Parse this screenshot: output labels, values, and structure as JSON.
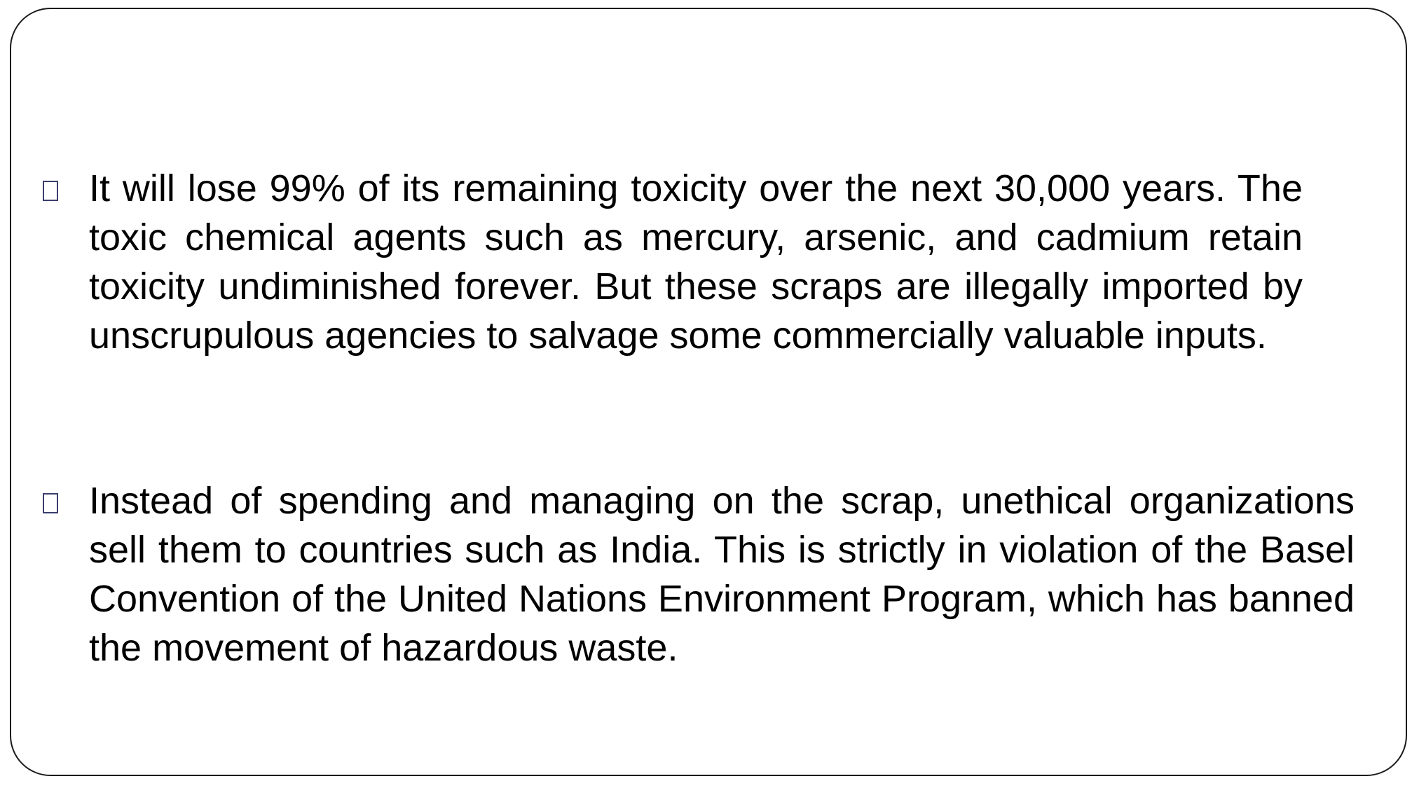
{
  "slide": {
    "bullets": [
      {
        "marker_icon": "square-bullet-icon",
        "text": "It will lose 99% of its remaining toxicity over the next 30,000 years. The  toxic chemical agents such as mercury, arsenic, and cadmium retain  toxicity undiminished forever. But these scraps are illegally imported by  unscrupulous agencies to salvage some commercially valuable inputs."
      },
      {
        "marker_icon": "square-bullet-icon",
        "text": "Instead of spending and managing on the scrap, unethical organizations  sell them to countries such as India. This is strictly in violation of the Basel Convention of the United Nations Environment Program, which has banned  the movement of hazardous waste."
      }
    ],
    "colors": {
      "text": "#000000",
      "bullet": "#3a3f6e",
      "frame": "#1a1a1a",
      "background": "#ffffff"
    }
  }
}
